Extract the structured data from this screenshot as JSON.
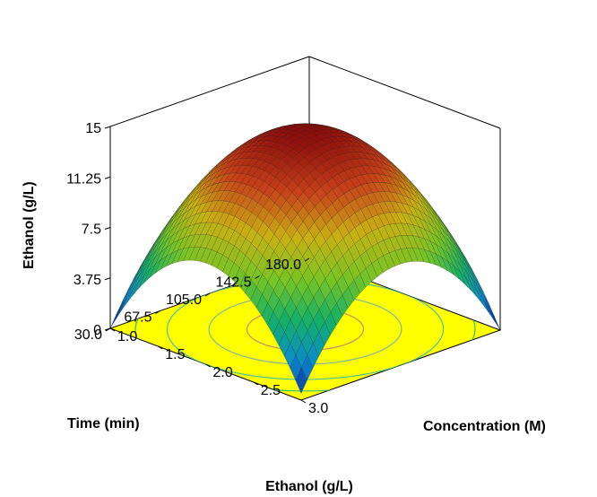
{
  "chart_data": {
    "type": "surface3d",
    "title": "Ethanol (g/L)",
    "zlabel": "Ethanol  (g/L)",
    "xlabel": "Concentration (M)",
    "ylabel": "Time (min)",
    "x": [
      1.0,
      1.5,
      2.0,
      2.5,
      3.0
    ],
    "x_tick_labels": [
      "1.0",
      "1.5",
      "2.0",
      "2.5",
      "3.0"
    ],
    "y": [
      30.0,
      67.5,
      105.0,
      142.5,
      180.0
    ],
    "y_tick_labels": [
      "30.0",
      "67.5",
      "105.0",
      "142.5",
      "180.0"
    ],
    "zlim": [
      0,
      15
    ],
    "z_ticks": [
      0,
      3.75,
      7.5,
      11.25,
      15
    ],
    "z_tick_labels": [
      "0",
      "3.75",
      "7.5",
      "11.25",
      "15"
    ],
    "model": "quadratic response surface",
    "peak": {
      "x": 2.0,
      "y": 105.0,
      "z": 14.8
    },
    "corner_values": {
      "x1_y30": 0,
      "x3_y180": 0,
      "x1_y180": 0.5,
      "x3_y30": 0.5
    },
    "contour_floor_color": "#ffff00",
    "colormap": [
      "#0b0f8f",
      "#0a8ad0",
      "#12b06a",
      "#78c424",
      "#c9b012",
      "#c8401a",
      "#8c0c0c"
    ]
  }
}
